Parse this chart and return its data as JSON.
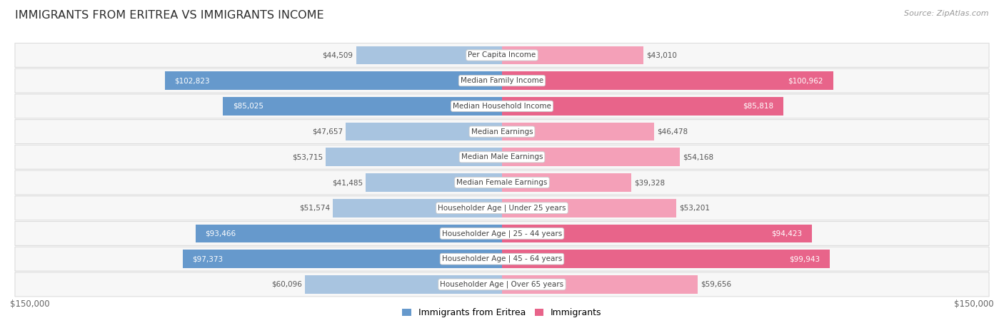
{
  "title": "IMMIGRANTS FROM ERITREA VS IMMIGRANTS INCOME",
  "source": "Source: ZipAtlas.com",
  "categories": [
    "Per Capita Income",
    "Median Family Income",
    "Median Household Income",
    "Median Earnings",
    "Median Male Earnings",
    "Median Female Earnings",
    "Householder Age | Under 25 years",
    "Householder Age | 25 - 44 years",
    "Householder Age | 45 - 64 years",
    "Householder Age | Over 65 years"
  ],
  "eritrea_values": [
    44509,
    102823,
    85025,
    47657,
    53715,
    41485,
    51574,
    93466,
    97373,
    60096
  ],
  "immigrants_values": [
    43010,
    100962,
    85818,
    46478,
    54168,
    39328,
    53201,
    94423,
    99943,
    59656
  ],
  "eritrea_labels": [
    "$44,509",
    "$102,823",
    "$85,025",
    "$47,657",
    "$53,715",
    "$41,485",
    "$51,574",
    "$93,466",
    "$97,373",
    "$60,096"
  ],
  "immigrants_labels": [
    "$43,010",
    "$100,962",
    "$85,818",
    "$46,478",
    "$54,168",
    "$39,328",
    "$53,201",
    "$94,423",
    "$99,943",
    "$59,656"
  ],
  "eritrea_color_light": "#a8c4e0",
  "eritrea_color_dark": "#6699cc",
  "immigrants_color_light": "#f4a0b8",
  "immigrants_color_dark": "#e8648a",
  "max_value": 150000,
  "legend_eritrea": "Immigrants from Eritrea",
  "legend_immigrants": "Immigrants",
  "title_color": "#2d2d2d",
  "label_color_dark": "#555555",
  "label_color_white": "#ffffff",
  "axis_label": "$150,000",
  "white_threshold": 80000
}
